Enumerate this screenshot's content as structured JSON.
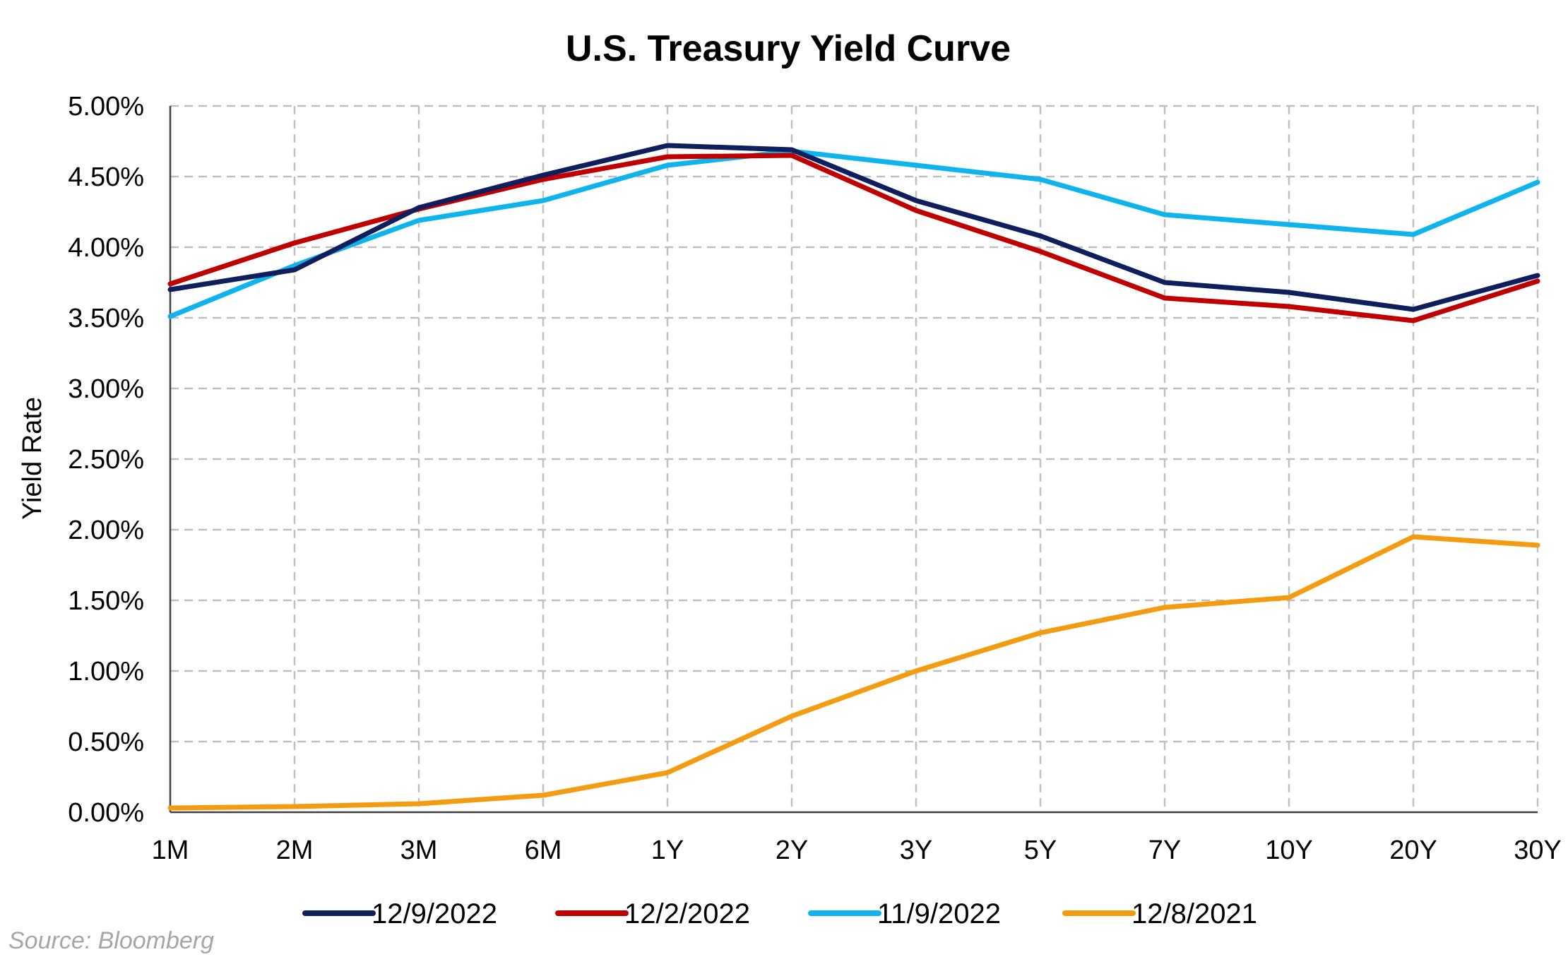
{
  "chart_data": {
    "type": "line",
    "title": "U.S. Treasury Yield Curve",
    "xlabel": "",
    "ylabel": "Yield Rate",
    "categories": [
      "1M",
      "2M",
      "3M",
      "6M",
      "1Y",
      "2Y",
      "3Y",
      "5Y",
      "7Y",
      "10Y",
      "20Y",
      "30Y"
    ],
    "ylim": [
      0,
      5
    ],
    "yticks": [
      "0.00%",
      "0.50%",
      "1.00%",
      "1.50%",
      "2.00%",
      "2.50%",
      "3.00%",
      "3.50%",
      "4.00%",
      "4.50%",
      "5.00%"
    ],
    "grid": true,
    "legend_position": "bottom",
    "series": [
      {
        "name": "12/9/2022",
        "color": "#0f1e5c",
        "values": [
          3.7,
          3.84,
          4.28,
          4.51,
          4.72,
          4.69,
          4.33,
          4.08,
          3.75,
          3.68,
          3.56,
          3.8
        ]
      },
      {
        "name": "12/2/2022",
        "color": "#c00000",
        "values": [
          3.74,
          4.03,
          4.27,
          4.48,
          4.64,
          4.65,
          4.26,
          3.97,
          3.64,
          3.58,
          3.48,
          3.76
        ]
      },
      {
        "name": "11/9/2022",
        "color": "#0fb4ec",
        "values": [
          3.51,
          3.87,
          4.19,
          4.33,
          4.58,
          4.68,
          4.58,
          4.48,
          4.23,
          4.16,
          4.09,
          4.46
        ]
      },
      {
        "name": "12/8/2021",
        "color": "#f39c12",
        "values": [
          0.03,
          0.04,
          0.06,
          0.12,
          0.28,
          0.68,
          1.0,
          1.27,
          1.45,
          1.52,
          1.95,
          1.89
        ]
      }
    ]
  },
  "footer": {
    "source": "Source: Bloomberg"
  }
}
